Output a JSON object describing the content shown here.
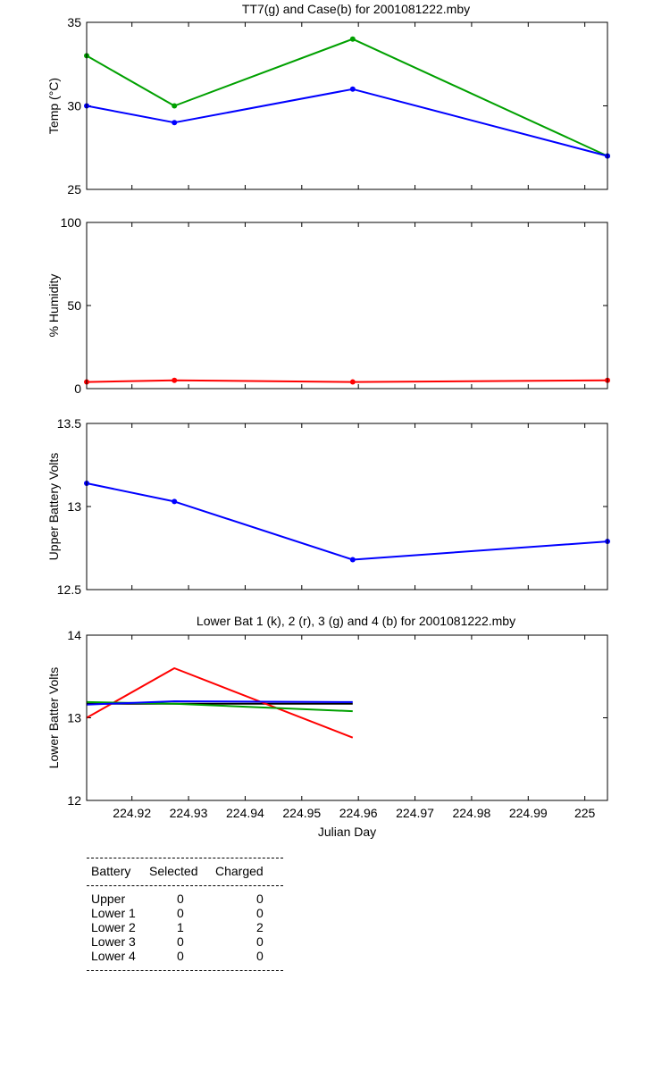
{
  "chart_data": [
    {
      "type": "line",
      "title": "TT7(g) and Case(b) for 2001081222.mby",
      "xlabel": "",
      "ylabel": "Temp  (°C)",
      "xlim": [
        224.912,
        225.004
      ],
      "ylim": [
        25,
        35
      ],
      "yticks": [
        25,
        30,
        35
      ],
      "xticks": [
        224.92,
        224.93,
        224.94,
        224.95,
        224.96,
        224.97,
        224.98,
        224.99,
        225
      ],
      "show_xtick_labels": false,
      "series": [
        {
          "key": "tt7",
          "color": "#00a000",
          "markers": true,
          "x": [
            224.912,
            224.9275,
            224.959,
            225.004
          ],
          "y": [
            33,
            30,
            34,
            27
          ]
        },
        {
          "key": "case",
          "color": "#0000ff",
          "markers": true,
          "x": [
            224.912,
            224.9275,
            224.959,
            225.004
          ],
          "y": [
            30,
            29,
            31,
            27
          ]
        }
      ]
    },
    {
      "type": "line",
      "title": "",
      "xlabel": "",
      "ylabel": "% Humidity",
      "xlim": [
        224.912,
        225.004
      ],
      "ylim": [
        0,
        100
      ],
      "yticks": [
        0,
        50,
        100
      ],
      "xticks": [
        224.92,
        224.93,
        224.94,
        224.95,
        224.96,
        224.97,
        224.98,
        224.99,
        225
      ],
      "show_xtick_labels": false,
      "series": [
        {
          "key": "humidity",
          "color": "#ff0000",
          "markers": true,
          "x": [
            224.912,
            224.9275,
            224.959,
            225.004
          ],
          "y": [
            4,
            5,
            4,
            5
          ]
        }
      ]
    },
    {
      "type": "line",
      "title": "",
      "xlabel": "",
      "ylabel": "Upper Battery Volts",
      "xlim": [
        224.912,
        225.004
      ],
      "ylim": [
        12.5,
        13.5
      ],
      "yticks": [
        12.5,
        13,
        13.5
      ],
      "xticks": [
        224.92,
        224.93,
        224.94,
        224.95,
        224.96,
        224.97,
        224.98,
        224.99,
        225
      ],
      "show_xtick_labels": false,
      "series": [
        {
          "key": "upper",
          "color": "#0000ff",
          "markers": true,
          "x": [
            224.912,
            224.9275,
            224.959,
            225.004
          ],
          "y": [
            13.14,
            13.03,
            12.68,
            12.79
          ]
        }
      ]
    },
    {
      "type": "line",
      "title": "Lower Bat 1 (k), 2 (r), 3 (g) and 4 (b) for 2001081222.mby",
      "xlabel": "Julian Day",
      "ylabel": "Lower Batter Volts",
      "xlim": [
        224.912,
        225.004
      ],
      "ylim": [
        12,
        14
      ],
      "yticks": [
        12,
        13,
        14
      ],
      "xticks": [
        224.92,
        224.93,
        224.94,
        224.95,
        224.96,
        224.97,
        224.98,
        224.99,
        225
      ],
      "show_xtick_labels": true,
      "series": [
        {
          "key": "bat1",
          "color": "#000000",
          "markers": false,
          "x": [
            224.912,
            224.9275,
            224.959
          ],
          "y": [
            13.17,
            13.17,
            13.17
          ]
        },
        {
          "key": "bat2",
          "color": "#ff0000",
          "markers": false,
          "x": [
            224.912,
            224.9275,
            224.959
          ],
          "y": [
            13.0,
            13.6,
            12.76
          ]
        },
        {
          "key": "bat3",
          "color": "#00a000",
          "markers": false,
          "x": [
            224.912,
            224.9275,
            224.959
          ],
          "y": [
            13.19,
            13.17,
            13.08
          ]
        },
        {
          "key": "bat4",
          "color": "#0000ff",
          "markers": false,
          "x": [
            224.912,
            224.9275,
            224.959
          ],
          "y": [
            13.16,
            13.2,
            13.19
          ]
        }
      ]
    }
  ],
  "table": {
    "headers": [
      "Battery",
      "Selected",
      "Charged"
    ],
    "rows": [
      {
        "battery": "Upper",
        "selected": "0",
        "charged": "0"
      },
      {
        "battery": "Lower 1",
        "selected": "0",
        "charged": "0"
      },
      {
        "battery": "Lower 2",
        "selected": "1",
        "charged": "2"
      },
      {
        "battery": "Lower 3",
        "selected": "0",
        "charged": "0"
      },
      {
        "battery": "Lower 4",
        "selected": "0",
        "charged": "0"
      }
    ]
  }
}
